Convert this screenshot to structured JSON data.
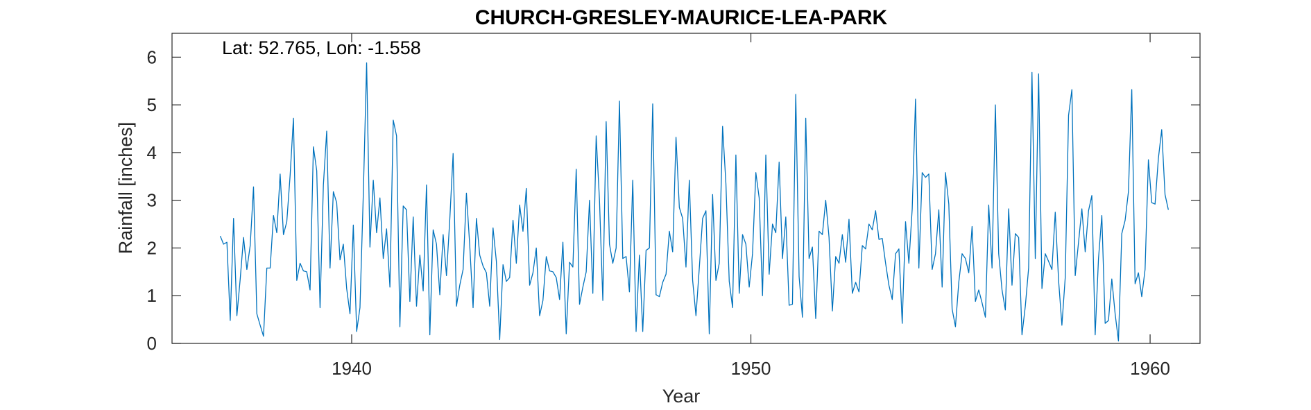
{
  "chart_data": {
    "type": "line",
    "title": "CHURCH-GRESLEY-MAURICE-LEA-PARK",
    "xlabel": "Year",
    "ylabel": "Rainfall [inches]",
    "annotation": "Lat: 52.765, Lon: -1.558",
    "xlim": [
      1935.5,
      1961.25
    ],
    "ylim": [
      0,
      6.5
    ],
    "x_ticks": [
      1940,
      1950,
      1960
    ],
    "x_tick_labels": [
      "1940",
      "1950",
      "1960"
    ],
    "y_ticks": [
      0,
      1,
      2,
      3,
      4,
      5,
      6
    ],
    "y_tick_labels": [
      "0",
      "1",
      "2",
      "3",
      "4",
      "5",
      "6"
    ],
    "grid": false,
    "box": true,
    "x_start": 1936.708,
    "x_step": 0.08333,
    "series": [
      {
        "color": "#0072BD",
        "values": [
          2.25,
          2.08,
          2.12,
          0.48,
          2.62,
          0.58,
          1.35,
          2.22,
          1.55,
          2.05,
          3.28,
          0.62,
          0.38,
          0.15,
          1.58,
          1.58,
          2.68,
          2.32,
          3.55,
          2.28,
          2.55,
          3.52,
          4.72,
          1.32,
          1.68,
          1.52,
          1.5,
          1.12,
          4.12,
          3.62,
          0.75,
          3.32,
          4.45,
          1.58,
          3.18,
          2.95,
          1.75,
          2.08,
          1.15,
          0.62,
          2.48,
          0.25,
          0.75,
          3.12,
          5.88,
          2.02,
          3.42,
          2.32,
          3.05,
          1.78,
          2.4,
          1.18,
          4.68,
          4.35,
          0.35,
          2.88,
          2.8,
          0.88,
          2.65,
          0.78,
          1.85,
          1.1,
          3.32,
          0.18,
          2.38,
          2.08,
          1.02,
          2.28,
          1.42,
          2.6,
          3.98,
          0.78,
          1.22,
          1.55,
          3.15,
          2.05,
          0.75,
          2.62,
          1.85,
          1.62,
          1.48,
          0.78,
          2.42,
          1.72,
          0.08,
          1.65,
          1.3,
          1.38,
          2.58,
          1.68,
          2.9,
          2.35,
          3.25,
          1.22,
          1.48,
          2.0,
          0.58,
          0.9,
          1.82,
          1.52,
          1.5,
          1.38,
          0.92,
          2.12,
          0.2,
          1.7,
          1.6,
          3.65,
          0.82,
          1.18,
          1.5,
          3.0,
          1.05,
          4.35,
          3.0,
          0.9,
          4.65,
          2.08,
          1.68,
          2.0,
          5.08,
          1.78,
          1.82,
          1.08,
          3.42,
          0.25,
          1.85,
          0.25,
          1.95,
          2.0,
          5.02,
          1.02,
          0.98,
          1.28,
          1.45,
          2.35,
          1.92,
          4.32,
          2.85,
          2.62,
          1.6,
          3.42,
          1.32,
          0.58,
          1.58,
          2.62,
          2.78,
          0.2,
          3.12,
          1.32,
          1.68,
          4.55,
          3.35,
          1.3,
          0.75,
          3.95,
          1.05,
          2.28,
          2.08,
          1.18,
          1.88,
          3.58,
          3.05,
          1.0,
          3.95,
          1.45,
          2.5,
          2.32,
          3.8,
          1.78,
          2.65,
          0.8,
          0.82,
          5.22,
          1.4,
          0.55,
          4.72,
          1.78,
          2.02,
          0.52,
          2.35,
          2.28,
          3.0,
          2.22,
          0.68,
          1.82,
          1.68,
          2.28,
          1.7,
          2.6,
          1.05,
          1.28,
          1.08,
          2.05,
          1.98,
          2.5,
          2.38,
          2.78,
          2.18,
          2.2,
          1.68,
          1.22,
          0.92,
          1.88,
          1.98,
          0.42,
          2.55,
          1.68,
          2.82,
          5.12,
          1.58,
          3.58,
          3.48,
          3.55,
          1.55,
          1.88,
          2.8,
          1.18,
          3.58,
          2.92,
          0.72,
          0.35,
          1.28,
          1.88,
          1.78,
          1.48,
          2.45,
          0.88,
          1.12,
          0.85,
          0.55,
          2.9,
          1.58,
          5.0,
          1.88,
          1.12,
          0.7,
          2.82,
          1.22,
          2.3,
          2.22,
          0.18,
          0.78,
          1.58,
          5.68,
          1.78,
          5.65,
          1.15,
          1.88,
          1.72,
          1.55,
          2.75,
          1.32,
          0.38,
          1.38,
          4.78,
          5.32,
          1.42,
          2.12,
          2.82,
          1.92,
          2.78,
          3.1,
          0.18,
          1.78,
          2.68,
          0.42,
          0.48,
          1.35,
          0.62,
          0.05,
          2.3,
          2.58,
          3.18,
          5.32,
          1.25,
          1.48,
          0.98,
          1.55,
          3.85,
          2.95,
          2.92,
          3.88,
          4.48,
          3.12,
          2.8
        ]
      }
    ]
  }
}
